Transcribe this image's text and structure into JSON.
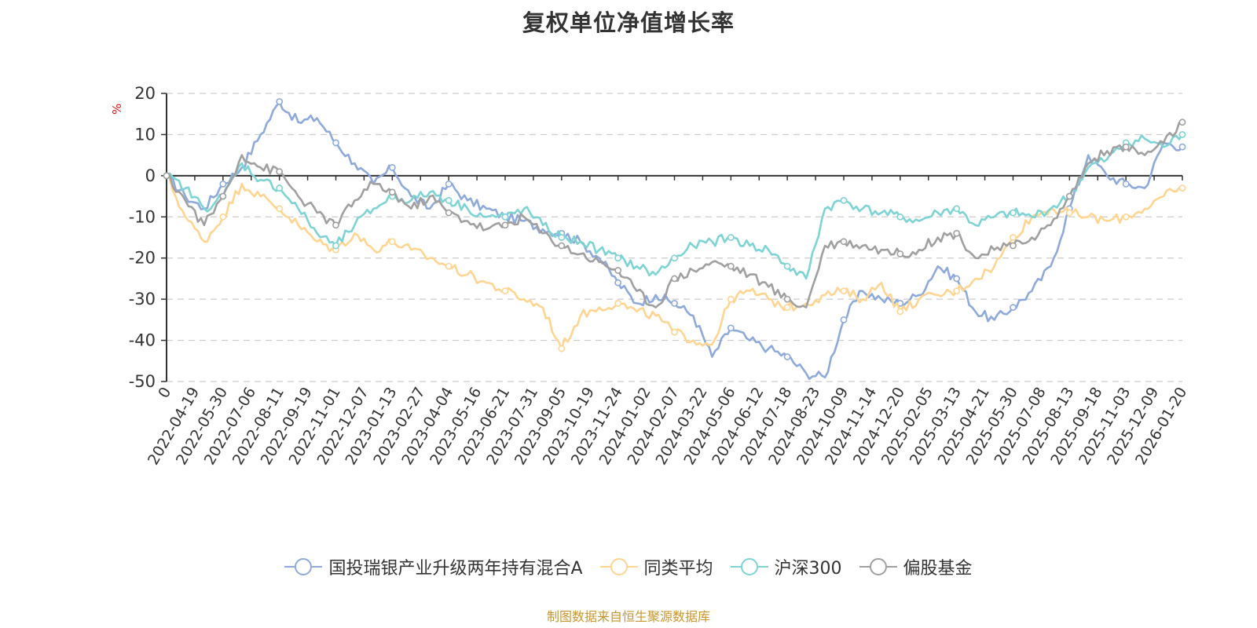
{
  "chart_data": {
    "type": "line",
    "title": "复权单位净值增长率",
    "ylabel": "%",
    "xlabel": "",
    "ylim": [
      -50,
      20
    ],
    "yticks": [
      20,
      10,
      0,
      -10,
      -20,
      -30,
      -40,
      -50
    ],
    "grid": true,
    "legend_position": "bottom-center",
    "x_tick_labels": [
      "0",
      "2022-04-19",
      "2022-05-30",
      "2022-07-06",
      "2022-08-11",
      "2022-09-19",
      "2022-11-01",
      "2022-12-07",
      "2023-01-13",
      "2023-02-27",
      "2023-04-04",
      "2023-05-16",
      "2023-06-21",
      "2023-07-31",
      "2023-09-05",
      "2023-10-19",
      "2023-11-24",
      "2024-01-02",
      "2024-02-07",
      "2024-03-22",
      "2024-05-06",
      "2024-06-12",
      "2024-07-18",
      "2024-08-23",
      "2024-10-09",
      "2024-11-14",
      "2024-12-20",
      "2025-02-05",
      "2025-03-13",
      "2025-04-21",
      "2025-05-30",
      "2025-07-08",
      "2025-08-13",
      "2025-09-18",
      "2025-11-03",
      "2025-12-09",
      "2026-01-20"
    ],
    "series": [
      {
        "name": "国投瑞银产业升级两年持有混合A",
        "color": "#8eaadb",
        "values": [
          0,
          -5,
          -8,
          -2,
          2,
          10,
          18,
          13,
          14,
          8,
          3,
          -2,
          2,
          -5,
          -8,
          -2,
          -6,
          -8,
          -10,
          -11,
          -13,
          -14,
          -16,
          -20,
          -26,
          -31,
          -29,
          -31,
          -34,
          -44,
          -37,
          -40,
          -42,
          -44,
          -48,
          -49,
          -35,
          -28,
          -30,
          -31,
          -29,
          -22,
          -25,
          -33,
          -35,
          -32,
          -28,
          -22,
          -8,
          5,
          0,
          -2,
          -3,
          8,
          7
        ]
      },
      {
        "name": "同类平均",
        "color": "#ffd591",
        "values": [
          0,
          -10,
          -16,
          -10,
          -2,
          -5,
          -8,
          -12,
          -16,
          -18,
          -14,
          -18,
          -16,
          -18,
          -20,
          -22,
          -24,
          -26,
          -28,
          -30,
          -32,
          -42,
          -34,
          -32,
          -31,
          -33,
          -34,
          -38,
          -40,
          -41,
          -30,
          -28,
          -30,
          -32,
          -31,
          -29,
          -28,
          -30,
          -26,
          -33,
          -30,
          -29,
          -28,
          -25,
          -22,
          -15,
          -10,
          -8,
          -9,
          -10,
          -11,
          -10,
          -8,
          -5,
          -3
        ]
      },
      {
        "name": "沪深300",
        "color": "#7ed3d4",
        "values": [
          0,
          -3,
          -8,
          -5,
          3,
          -1,
          -3,
          -8,
          -14,
          -17,
          -12,
          -8,
          -5,
          -6,
          -4,
          -6,
          -8,
          -10,
          -10,
          -8,
          -12,
          -15,
          -16,
          -18,
          -20,
          -22,
          -24,
          -20,
          -17,
          -16,
          -15,
          -17,
          -18,
          -22,
          -25,
          -8,
          -6,
          -8,
          -9,
          -10,
          -11,
          -9,
          -8,
          -12,
          -10,
          -9,
          -10,
          -8,
          -5,
          2,
          4,
          8,
          9,
          7,
          10
        ]
      },
      {
        "name": "偏股基金",
        "color": "#a0a0a0",
        "values": [
          0,
          -6,
          -12,
          -5,
          5,
          2,
          1,
          -5,
          -9,
          -12,
          -6,
          -2,
          -4,
          -8,
          -5,
          -9,
          -11,
          -13,
          -12,
          -10,
          -14,
          -17,
          -19,
          -21,
          -23,
          -28,
          -32,
          -25,
          -23,
          -21,
          -22,
          -24,
          -27,
          -30,
          -32,
          -17,
          -16,
          -17,
          -18,
          -19,
          -18,
          -15,
          -14,
          -20,
          -18,
          -17,
          -15,
          -12,
          -5,
          3,
          6,
          7,
          5,
          8,
          13
        ]
      }
    ]
  },
  "source_text": "制图数据来自恒生聚源数据库",
  "colors": {
    "source": "#c8962e",
    "axis": "#333333",
    "grid": "#cccccc"
  }
}
